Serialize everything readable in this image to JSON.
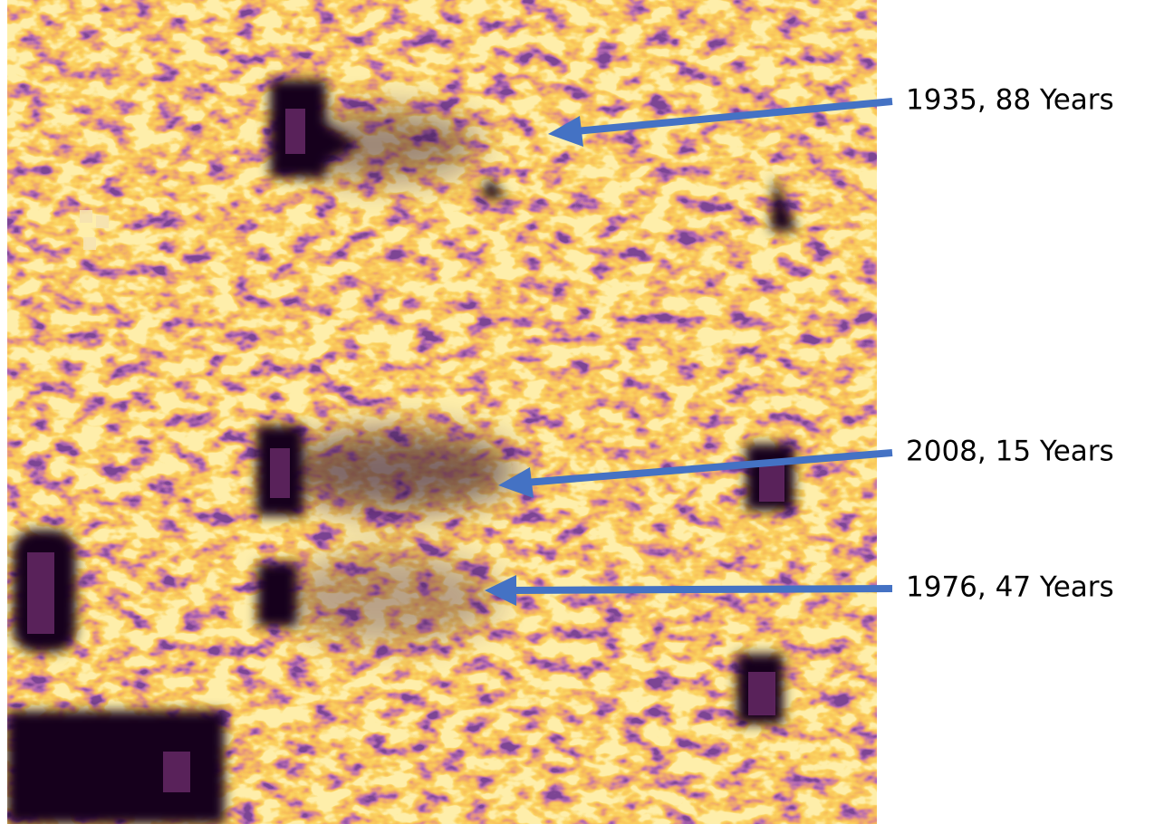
{
  "annotations": [
    {
      "label": "1935, 88 Years"
    },
    {
      "label": "2008, 15 Years"
    },
    {
      "label": "1976, 47 Years"
    }
  ]
}
